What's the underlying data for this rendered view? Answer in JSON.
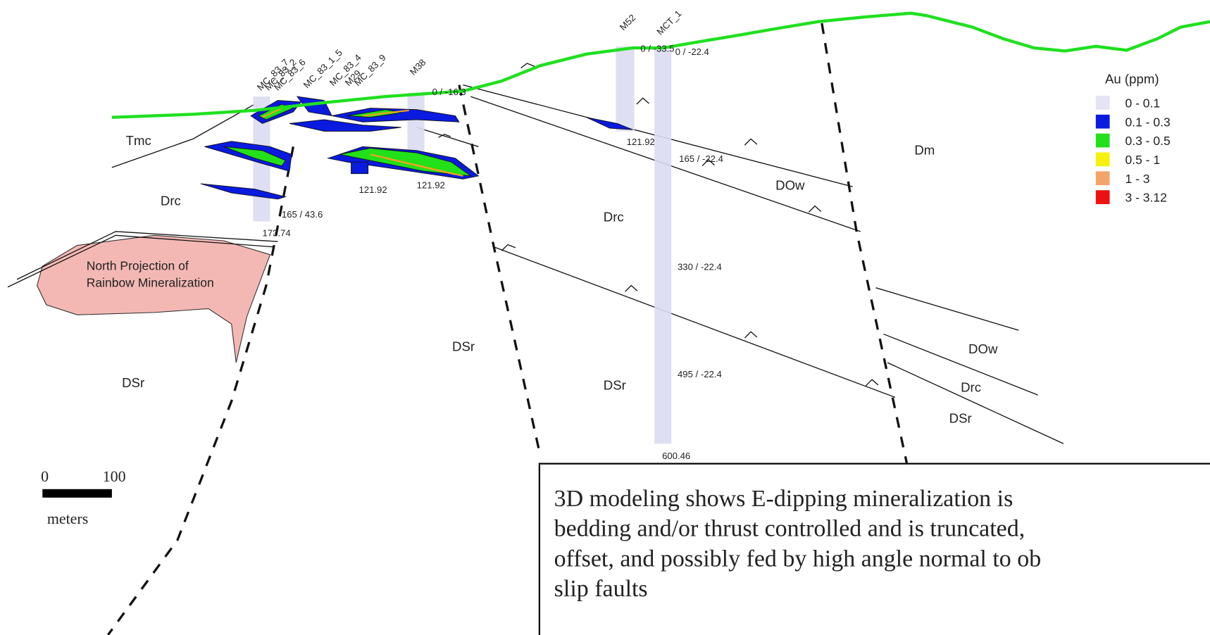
{
  "units": [
    "Tmc",
    "Drc",
    "DSr",
    "Drc",
    "DSr",
    "DOw",
    "Dm",
    "DSr",
    "DOw",
    "Drc",
    "DSr"
  ],
  "projection": [
    "North Projection of",
    "Rainbow Mineralization"
  ],
  "drill_holes": [
    "M52",
    "MCT_1",
    "M38",
    "MC_83_7",
    "MC_83_2",
    "MC_83_6",
    "MC_83_1_5",
    "MC_83_4",
    "M29",
    "MC_83_9"
  ],
  "depth_labels": [
    "0 / -33.5",
    "0 / -22.4",
    "121.92",
    "165 / -22.4",
    "330 / -22.4",
    "495 / -22.4",
    "600.46",
    "0 / -16.3",
    "121.92",
    "121.92",
    "165 / 43.6",
    "173.74"
  ],
  "legend": {
    "title": "Au (ppm)",
    "items": [
      {
        "label": "0 - 0.1",
        "color": "#e4e4f4"
      },
      {
        "label": "0.1 - 0.3",
        "color": "#0a1adf"
      },
      {
        "label": "0.3 - 0.5",
        "color": "#22e01a"
      },
      {
        "label": "0.5 - 1",
        "color": "#f4f10a"
      },
      {
        "label": "1 - 3",
        "color": "#f4a46a"
      },
      {
        "label": "3 - 3.12",
        "color": "#ee1010"
      }
    ]
  },
  "scale_bar": {
    "start": "0",
    "end": "100",
    "unit": "meters"
  },
  "note": [
    "3D modeling shows E-dipping mineralization is",
    "bedding and/or thrust controlled and is truncated,",
    "offset, and possibly fed by high angle normal to ob",
    "slip faults"
  ]
}
